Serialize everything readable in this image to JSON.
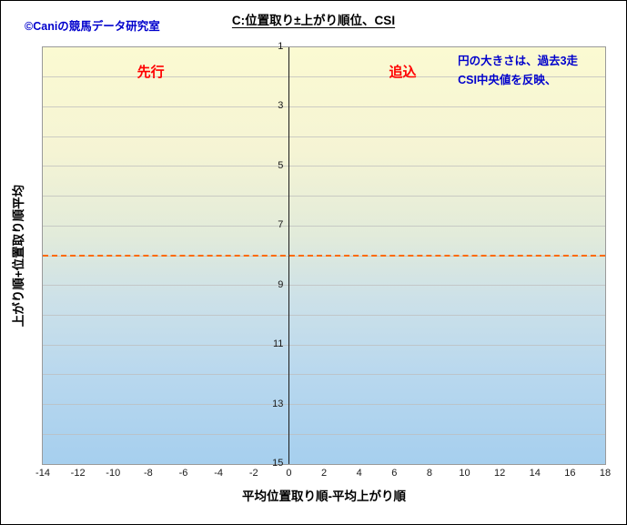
{
  "header": {
    "copyright": "©Caniの競馬データ研究室"
  },
  "chart_data": {
    "type": "scatter",
    "title": "C:位置取り±上がり順位、CSI",
    "xlabel": "平均位置取り順-平均上がり順",
    "ylabel": "上がり順+位置取り順平均",
    "xlim": [
      -14,
      18
    ],
    "ylim": [
      1,
      15
    ],
    "y_axis_inverted": true,
    "x_ticks": [
      -14,
      -12,
      -10,
      -8,
      -6,
      -4,
      -2,
      0,
      2,
      4,
      6,
      8,
      10,
      12,
      14,
      16,
      18
    ],
    "y_ticks": [
      1,
      3,
      5,
      7,
      9,
      11,
      13,
      15
    ],
    "grid_step_y": 1,
    "grid": true,
    "legend_position": "none",
    "vertical_axis_at_x": 0,
    "reference_line": {
      "y": 8,
      "style": "dashed",
      "color": "#FF6A00"
    },
    "quadrant_labels": {
      "front_runner": "先行",
      "closer": "追込"
    },
    "note_lines": [
      "円の大きさは、過去3走",
      "CSI中央値を反映、"
    ],
    "points": [],
    "background_gradient": [
      {
        "pos": 0,
        "color": "#FBFAD2"
      },
      {
        "pos": 25,
        "color": "#F5F4D4"
      },
      {
        "pos": 45,
        "color": "#E2EBDA"
      },
      {
        "pos": 60,
        "color": "#CDE1E8"
      },
      {
        "pos": 78,
        "color": "#B9D8EE"
      },
      {
        "pos": 100,
        "color": "#A6CFEE"
      }
    ],
    "colors": {
      "quadrant_label": "#FF0000",
      "note": "#0000CC",
      "copyright": "#0000CC",
      "reference_line": "#FF6A00",
      "axis_line": "#1a1a1a",
      "gridline": "#BDBDBD"
    }
  }
}
